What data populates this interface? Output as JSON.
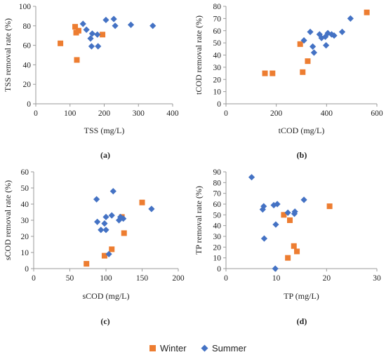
{
  "legend": {
    "series": [
      {
        "name": "Winter",
        "color": "#ED7D31",
        "marker": "square"
      },
      {
        "name": "Summer",
        "color": "#4472C4",
        "marker": "diamond"
      }
    ]
  },
  "chart_data": [
    {
      "type": "scatter",
      "panel_label": "(a)",
      "xlabel": "TSS (mg/L)",
      "ylabel": "TSS removal rate (%)",
      "xlim": [
        0,
        400
      ],
      "ylim": [
        0,
        100
      ],
      "xticks": [
        0,
        100,
        200,
        300,
        400
      ],
      "yticks": [
        0,
        20,
        40,
        60,
        80,
        100
      ],
      "grid": false,
      "series": [
        {
          "name": "Winter",
          "points": [
            [
              72,
              62
            ],
            [
              115,
              79
            ],
            [
              118,
              73
            ],
            [
              120,
              45
            ],
            [
              125,
              75
            ],
            [
              195,
              71
            ]
          ]
        },
        {
          "name": "Summer",
          "points": [
            [
              138,
              82
            ],
            [
              148,
              76
            ],
            [
              160,
              67
            ],
            [
              163,
              59
            ],
            [
              165,
              72
            ],
            [
              180,
              71
            ],
            [
              182,
              59
            ],
            [
              205,
              86
            ],
            [
              228,
              87
            ],
            [
              232,
              80
            ],
            [
              278,
              81
            ],
            [
              342,
              80
            ]
          ]
        }
      ]
    },
    {
      "type": "scatter",
      "panel_label": "(b)",
      "xlabel": "tCOD (mg/L)",
      "ylabel": "tCOD removal rate (%)",
      "xlim": [
        0,
        600
      ],
      "ylim": [
        0,
        80
      ],
      "xticks": [
        0,
        200,
        400,
        600
      ],
      "yticks": [
        0,
        10,
        20,
        30,
        40,
        50,
        60,
        70,
        80
      ],
      "grid": false,
      "series": [
        {
          "name": "Winter",
          "points": [
            [
              155,
              25
            ],
            [
              185,
              25
            ],
            [
              295,
              49
            ],
            [
              305,
              26
            ],
            [
              325,
              35
            ],
            [
              560,
              75
            ]
          ]
        },
        {
          "name": "Summer",
          "points": [
            [
              310,
              52
            ],
            [
              335,
              59
            ],
            [
              345,
              47
            ],
            [
              350,
              42
            ],
            [
              372,
              57
            ],
            [
              380,
              54
            ],
            [
              395,
              55
            ],
            [
              398,
              48
            ],
            [
              405,
              58
            ],
            [
              420,
              57
            ],
            [
              430,
              56
            ],
            [
              462,
              59
            ],
            [
              495,
              70
            ]
          ]
        }
      ]
    },
    {
      "type": "scatter",
      "panel_label": "(c)",
      "xlabel": "sCOD (mg/L)",
      "ylabel": "sCOD removal rate (%)",
      "xlim": [
        0,
        200
      ],
      "ylim": [
        0,
        60
      ],
      "xticks": [
        0,
        50,
        100,
        150,
        200
      ],
      "yticks": [
        0,
        10,
        20,
        30,
        40,
        50,
        60
      ],
      "grid": false,
      "series": [
        {
          "name": "Winter",
          "points": [
            [
              73,
              3
            ],
            [
              98,
              8
            ],
            [
              108,
              12
            ],
            [
              122,
              32
            ],
            [
              125,
              22
            ],
            [
              150,
              41
            ]
          ]
        },
        {
          "name": "Summer",
          "points": [
            [
              87,
              43
            ],
            [
              88,
              29
            ],
            [
              93,
              24
            ],
            [
              98,
              28
            ],
            [
              100,
              32
            ],
            [
              100,
              24
            ],
            [
              104,
              9
            ],
            [
              108,
              33
            ],
            [
              110,
              48
            ],
            [
              118,
              30
            ],
            [
              120,
              32
            ],
            [
              124,
              31
            ],
            [
              163,
              37
            ]
          ]
        }
      ]
    },
    {
      "type": "scatter",
      "panel_label": "(d)",
      "xlabel": "TP (mg/L)",
      "ylabel": "TP removal rate (%)",
      "xlim": [
        0,
        30
      ],
      "ylim": [
        0,
        90
      ],
      "xticks": [
        0,
        10,
        20,
        30
      ],
      "yticks": [
        0,
        10,
        20,
        30,
        40,
        50,
        60,
        70,
        80,
        90
      ],
      "grid": false,
      "series": [
        {
          "name": "Winter",
          "points": [
            [
              11.5,
              50
            ],
            [
              12.3,
              10
            ],
            [
              12.7,
              45
            ],
            [
              13.5,
              21
            ],
            [
              14.1,
              16
            ],
            [
              20.6,
              58
            ]
          ]
        },
        {
          "name": "Summer",
          "points": [
            [
              5.1,
              85
            ],
            [
              7.3,
              55
            ],
            [
              7.5,
              58
            ],
            [
              7.6,
              28
            ],
            [
              9.5,
              59
            ],
            [
              9.8,
              0
            ],
            [
              9.9,
              41
            ],
            [
              10.2,
              60
            ],
            [
              12.3,
              52
            ],
            [
              13.6,
              51
            ],
            [
              13.7,
              53
            ],
            [
              15.5,
              64
            ]
          ]
        }
      ]
    }
  ]
}
